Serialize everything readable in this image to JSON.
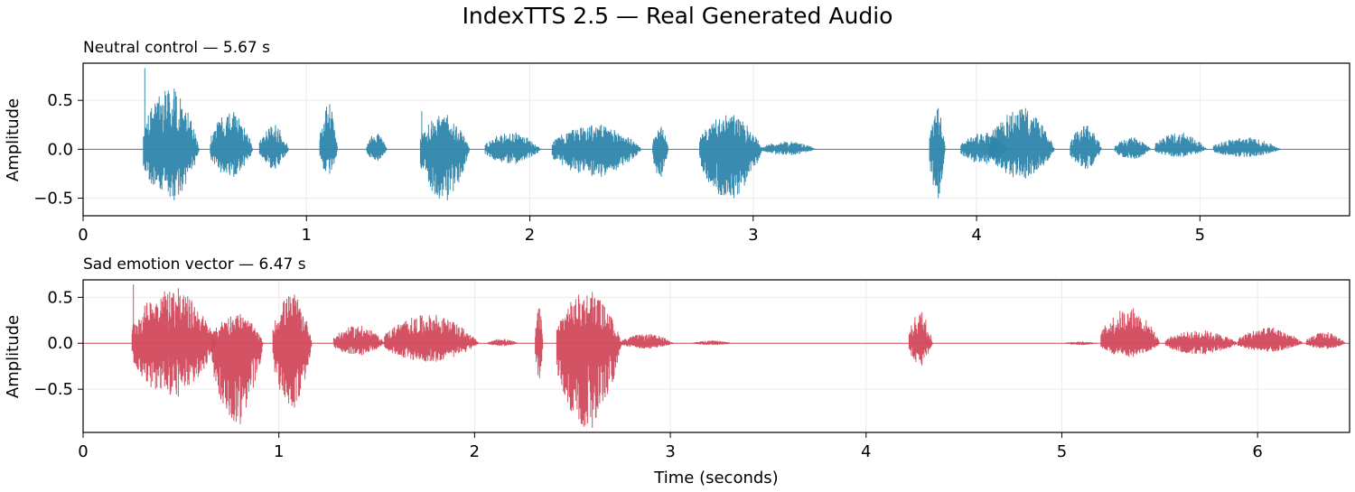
{
  "figure": {
    "title": "IndexTTS 2.5 — Real Generated Audio"
  },
  "chart_data": [
    {
      "type": "area",
      "title": "Neutral control — 5.67 s",
      "xlabel": "",
      "ylabel": "Amplitude",
      "xlim": [
        0,
        5.67
      ],
      "ylim": [
        -0.68,
        0.88
      ],
      "x_ticks": [
        0,
        1,
        2,
        3,
        4,
        5
      ],
      "y_ticks": [
        0.5,
        0.0,
        -0.5
      ],
      "x_tick_labels": [
        "0",
        "1",
        "2",
        "3",
        "4",
        "5"
      ],
      "y_tick_labels": [
        "0.5",
        "0.0",
        "−0.5"
      ],
      "grid": true,
      "color": "#2e86ab",
      "segments": [
        {
          "start": 0.27,
          "end": 0.52,
          "peak": 0.62,
          "trough": -0.52,
          "spike": 0.83
        },
        {
          "start": 0.57,
          "end": 0.76,
          "peak": 0.38,
          "trough": -0.28
        },
        {
          "start": 0.79,
          "end": 0.92,
          "peak": 0.25,
          "trough": -0.2
        },
        {
          "start": 1.06,
          "end": 1.14,
          "peak": 0.46,
          "trough": -0.25
        },
        {
          "start": 1.27,
          "end": 1.36,
          "peak": 0.16,
          "trough": -0.12
        },
        {
          "start": 1.51,
          "end": 1.73,
          "peak": 0.35,
          "trough": -0.52,
          "spike": 0.39
        },
        {
          "start": 1.8,
          "end": 2.05,
          "peak": 0.17,
          "trough": -0.15
        },
        {
          "start": 2.1,
          "end": 2.5,
          "peak": 0.25,
          "trough": -0.28
        },
        {
          "start": 2.55,
          "end": 2.62,
          "peak": 0.23,
          "trough": -0.28
        },
        {
          "start": 2.76,
          "end": 3.04,
          "peak": 0.35,
          "trough": -0.5
        },
        {
          "start": 3.04,
          "end": 3.28,
          "peak": 0.08,
          "trough": -0.06
        },
        {
          "start": 3.79,
          "end": 3.86,
          "peak": 0.42,
          "trough": -0.5
        },
        {
          "start": 3.93,
          "end": 4.14,
          "peak": 0.17,
          "trough": -0.15
        },
        {
          "start": 4.06,
          "end": 4.35,
          "peak": 0.42,
          "trough": -0.3
        },
        {
          "start": 4.42,
          "end": 4.56,
          "peak": 0.24,
          "trough": -0.2
        },
        {
          "start": 4.62,
          "end": 4.78,
          "peak": 0.12,
          "trough": -0.1
        },
        {
          "start": 4.8,
          "end": 5.03,
          "peak": 0.17,
          "trough": -0.08
        },
        {
          "start": 5.06,
          "end": 5.36,
          "peak": 0.12,
          "trough": -0.08
        }
      ]
    },
    {
      "type": "area",
      "title": "Sad emotion vector — 6.47 s",
      "xlabel": "Time (seconds)",
      "ylabel": "Amplitude",
      "xlim": [
        0,
        6.47
      ],
      "ylim": [
        -0.97,
        0.69
      ],
      "x_ticks": [
        0,
        1,
        2,
        3,
        4,
        5,
        6
      ],
      "y_ticks": [
        0.5,
        0.0,
        -0.5
      ],
      "x_tick_labels": [
        "0",
        "1",
        "2",
        "3",
        "4",
        "5",
        "6"
      ],
      "y_tick_labels": [
        "0.5",
        "0.0",
        "−0.5"
      ],
      "grid": true,
      "color": "#d1495b",
      "segments": [
        {
          "start": 0.25,
          "end": 0.68,
          "peak": 0.6,
          "trough": -0.58,
          "spike": 0.64
        },
        {
          "start": 0.66,
          "end": 0.92,
          "peak": 0.32,
          "trough": -0.88
        },
        {
          "start": 0.97,
          "end": 1.17,
          "peak": 0.53,
          "trough": -0.7
        },
        {
          "start": 1.28,
          "end": 1.54,
          "peak": 0.19,
          "trough": -0.13
        },
        {
          "start": 1.54,
          "end": 2.02,
          "peak": 0.31,
          "trough": -0.2
        },
        {
          "start": 2.07,
          "end": 2.22,
          "peak": 0.05,
          "trough": -0.03
        },
        {
          "start": 2.31,
          "end": 2.35,
          "peak": 0.38,
          "trough": -0.38
        },
        {
          "start": 2.42,
          "end": 2.75,
          "peak": 0.56,
          "trough": -0.92
        },
        {
          "start": 2.75,
          "end": 3.02,
          "peak": 0.1,
          "trough": -0.06
        },
        {
          "start": 3.12,
          "end": 3.32,
          "peak": 0.03,
          "trough": -0.02
        },
        {
          "start": 4.22,
          "end": 4.34,
          "peak": 0.34,
          "trough": -0.24
        },
        {
          "start": 5.02,
          "end": 5.18,
          "peak": 0.02,
          "trough": -0.02
        },
        {
          "start": 5.2,
          "end": 5.5,
          "peak": 0.38,
          "trough": -0.15
        },
        {
          "start": 5.53,
          "end": 5.9,
          "peak": 0.14,
          "trough": -0.12
        },
        {
          "start": 5.9,
          "end": 6.23,
          "peak": 0.17,
          "trough": -0.09
        },
        {
          "start": 6.25,
          "end": 6.45,
          "peak": 0.12,
          "trough": -0.06
        }
      ]
    }
  ]
}
